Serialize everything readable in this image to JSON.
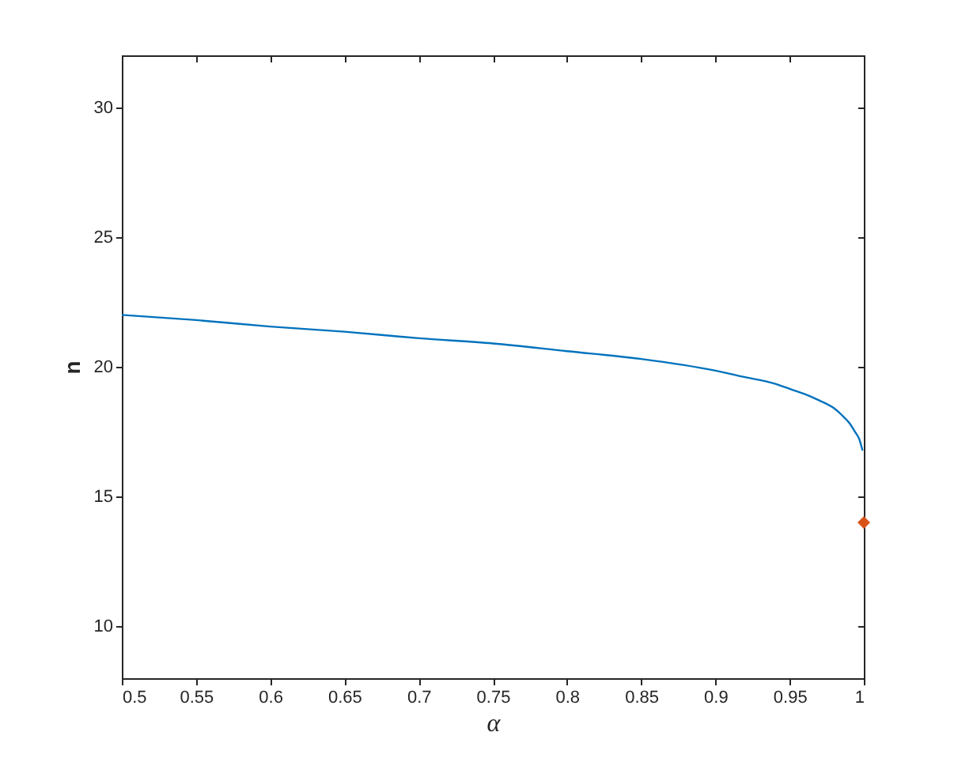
{
  "chart_data": {
    "type": "line",
    "xlabel": "α",
    "ylabel": "n",
    "xlim": [
      0.5,
      1
    ],
    "ylim": [
      8,
      32
    ],
    "xticks": [
      0.5,
      0.55,
      0.6,
      0.65,
      0.7,
      0.75,
      0.8,
      0.85,
      0.9,
      0.95,
      1
    ],
    "yticks": [
      10,
      15,
      20,
      25,
      30
    ],
    "series": [
      {
        "color": "#0072bd",
        "x": [
          0.5,
          0.55,
          0.6,
          0.65,
          0.7,
          0.75,
          0.8,
          0.85,
          0.9,
          0.92,
          0.94,
          0.95,
          0.96,
          0.97,
          0.98,
          0.985,
          0.99,
          0.994,
          0.997,
          0.999
        ],
        "values": [
          22.0,
          21.8,
          21.55,
          21.35,
          21.1,
          20.9,
          20.6,
          20.3,
          19.85,
          19.6,
          19.35,
          19.15,
          18.95,
          18.7,
          18.4,
          18.15,
          17.85,
          17.5,
          17.2,
          16.8
        ]
      },
      {
        "type": "scatter",
        "color": "#d95319",
        "marker": "diamond",
        "x": [
          1
        ],
        "values": [
          14
        ]
      }
    ]
  }
}
